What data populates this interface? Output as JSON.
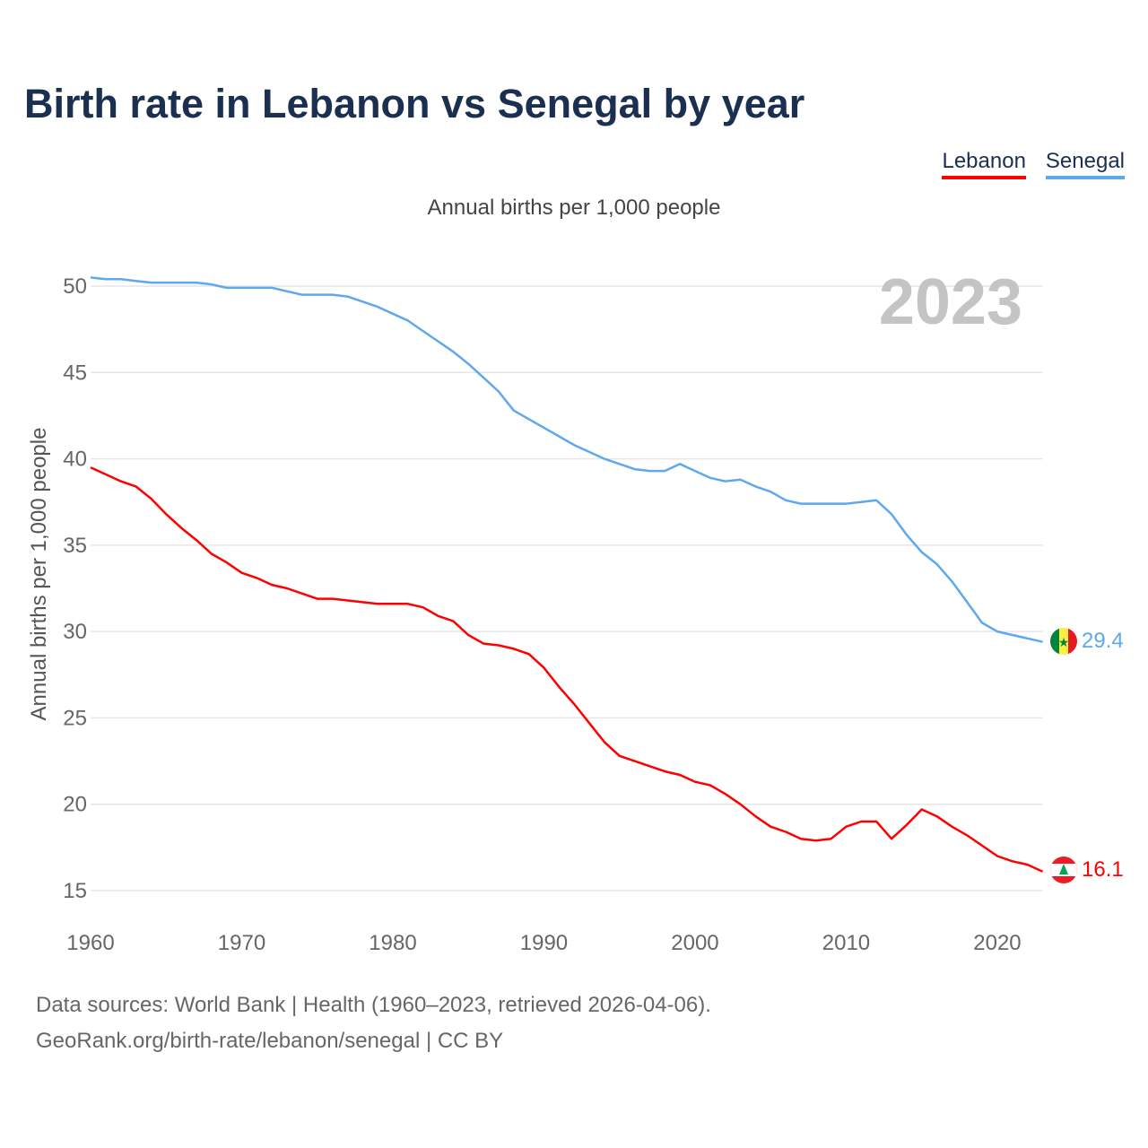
{
  "title": "Birth rate in Lebanon vs Senegal by year",
  "subtitle": "Annual births per 1,000 people",
  "year_watermark": "2023",
  "legend": [
    {
      "label": "Lebanon",
      "color": "#ff0000"
    },
    {
      "label": "Senegal",
      "color": "#5ea8ee"
    }
  ],
  "end_labels": {
    "lebanon": "16.1",
    "senegal": "29.4"
  },
  "footer": {
    "line1": "Data sources: World Bank | Health (1960–2023, retrieved 2026-04-06).",
    "line2": "GeoRank.org/birth-rate/lebanon/senegal | CC BY"
  },
  "chart_data": {
    "type": "line",
    "title": "Birth rate in Lebanon vs Senegal by year",
    "xlabel": "",
    "ylabel": "Annual births per 1,000 people",
    "xlim": [
      1960,
      2023
    ],
    "ylim": [
      15,
      50
    ],
    "xticks": [
      "1960",
      "1970",
      "1980",
      "1990",
      "2000",
      "2010",
      "2020"
    ],
    "yticks": [
      "15",
      "20",
      "25",
      "30",
      "35",
      "40",
      "45",
      "50"
    ],
    "grid": true,
    "legend_position": "top-right",
    "x_start": 1960,
    "series": [
      {
        "name": "Lebanon",
        "color": "#ff0000",
        "values": [
          39.5,
          39.1,
          38.7,
          38.4,
          37.7,
          36.8,
          36.0,
          35.3,
          34.5,
          34.0,
          33.4,
          33.1,
          32.7,
          32.5,
          32.2,
          31.9,
          31.9,
          31.8,
          31.7,
          31.6,
          31.6,
          31.6,
          31.4,
          30.9,
          30.6,
          29.8,
          29.3,
          29.2,
          29.0,
          28.7,
          27.9,
          26.8,
          25.8,
          24.7,
          23.6,
          22.8,
          22.5,
          22.2,
          21.9,
          21.7,
          21.3,
          21.1,
          20.6,
          20.0,
          19.3,
          18.7,
          18.4,
          18.0,
          17.9,
          18.0,
          18.7,
          19.0,
          19.0,
          18.0,
          18.8,
          19.7,
          19.3,
          18.7,
          18.2,
          17.6,
          17.0,
          16.7,
          16.5,
          16.1
        ]
      },
      {
        "name": "Senegal",
        "color": "#5ea8ee",
        "values": [
          50.5,
          50.4,
          50.4,
          50.3,
          50.2,
          50.2,
          50.2,
          50.2,
          50.1,
          49.9,
          49.9,
          49.9,
          49.9,
          49.7,
          49.5,
          49.5,
          49.5,
          49.4,
          49.1,
          48.8,
          48.4,
          48.0,
          47.4,
          46.8,
          46.2,
          45.5,
          44.7,
          43.9,
          42.8,
          42.3,
          41.8,
          41.3,
          40.8,
          40.4,
          40.0,
          39.7,
          39.4,
          39.3,
          39.3,
          39.7,
          39.3,
          38.9,
          38.7,
          38.8,
          38.4,
          38.1,
          37.6,
          37.4,
          37.4,
          37.4,
          37.4,
          37.5,
          37.6,
          36.8,
          35.6,
          34.6,
          33.9,
          32.9,
          31.7,
          30.5,
          30.0,
          29.8,
          29.6,
          29.4
        ]
      }
    ]
  }
}
